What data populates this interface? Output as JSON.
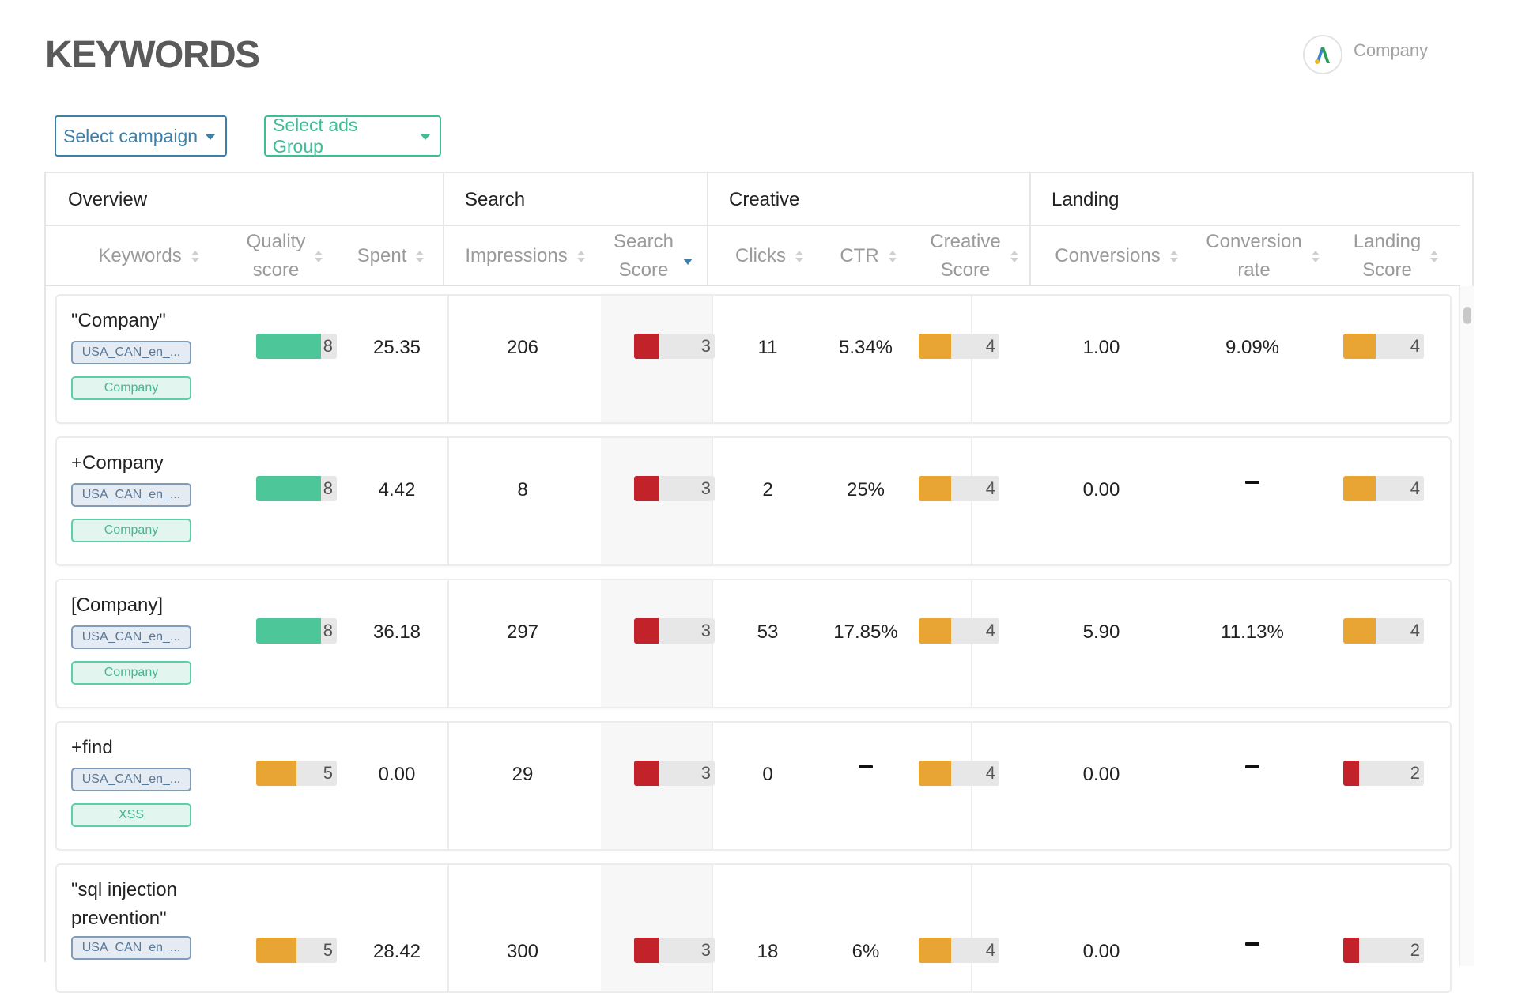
{
  "page": {
    "title": "KEYWORDS"
  },
  "brand": {
    "name": "Company",
    "icon": "google-ads-icon"
  },
  "filters": {
    "campaign_label": "Select campaign",
    "ads_group_label": "Select ads Group"
  },
  "groups": [
    "Overview",
    "Search",
    "Creative",
    "Landing"
  ],
  "columns": {
    "keywords": "Keywords",
    "quality_1": "Quality",
    "quality_2": "score",
    "spent": "Spent",
    "impressions": "Impressions",
    "search_1": "Search",
    "search_2": "Score",
    "clicks": "Clicks",
    "ctr": "CTR",
    "creative_1": "Creative",
    "creative_2": "Score",
    "conversions": "Conversions",
    "conv_rate_1": "Conversion",
    "conv_rate_2": "rate",
    "landing_1": "Landing",
    "landing_2": "Score"
  },
  "score_max": 10,
  "colors": {
    "green": "#4dc69a",
    "orange": "#e9a534",
    "red": "#c2232b",
    "accent": "#3e7fa8",
    "teal": "#3cbf97"
  },
  "rows": [
    {
      "keyword_lines": [
        "\"Company\""
      ],
      "campaign": "USA_CAN_en_...",
      "ad_group": "Company",
      "quality": {
        "value": 8,
        "label": "8",
        "color": "green"
      },
      "spent": "25.35",
      "impressions": "206",
      "search": {
        "value": 3,
        "label": "3",
        "color": "red"
      },
      "clicks": "11",
      "ctr": "5.34%",
      "creative": {
        "value": 4,
        "label": "4",
        "color": "orange"
      },
      "conversions": "1.00",
      "conv_rate": "9.09%",
      "landing": {
        "value": 4,
        "label": "4",
        "color": "orange"
      }
    },
    {
      "keyword_lines": [
        "+Company"
      ],
      "campaign": "USA_CAN_en_...",
      "ad_group": "Company",
      "quality": {
        "value": 8,
        "label": "8",
        "color": "green"
      },
      "spent": "4.42",
      "impressions": "8",
      "search": {
        "value": 3,
        "label": "3",
        "color": "red"
      },
      "clicks": "2",
      "ctr": "25%",
      "creative": {
        "value": 4,
        "label": "4",
        "color": "orange"
      },
      "conversions": "0.00",
      "conv_rate": null,
      "landing": {
        "value": 4,
        "label": "4",
        "color": "orange"
      }
    },
    {
      "keyword_lines": [
        "[Company]"
      ],
      "campaign": "USA_CAN_en_...",
      "ad_group": "Company",
      "quality": {
        "value": 8,
        "label": "8",
        "color": "green"
      },
      "spent": "36.18",
      "impressions": "297",
      "search": {
        "value": 3,
        "label": "3",
        "color": "red"
      },
      "clicks": "53",
      "ctr": "17.85%",
      "creative": {
        "value": 4,
        "label": "4",
        "color": "orange"
      },
      "conversions": "5.90",
      "conv_rate": "11.13%",
      "landing": {
        "value": 4,
        "label": "4",
        "color": "orange"
      }
    },
    {
      "keyword_lines": [
        "+find"
      ],
      "campaign": "USA_CAN_en_...",
      "ad_group": "XSS",
      "quality": {
        "value": 5,
        "label": "5",
        "color": "orange"
      },
      "spent": "0.00",
      "impressions": "29",
      "search": {
        "value": 3,
        "label": "3",
        "color": "red"
      },
      "clicks": "0",
      "ctr": null,
      "creative": {
        "value": 4,
        "label": "4",
        "color": "orange"
      },
      "conversions": "0.00",
      "conv_rate": null,
      "landing": {
        "value": 2,
        "label": "2",
        "color": "red"
      }
    },
    {
      "keyword_lines": [
        "\"sql injection",
        "prevention\""
      ],
      "campaign": "USA_CAN_en_...",
      "ad_group": "",
      "quality": {
        "value": 5,
        "label": "5",
        "color": "orange"
      },
      "spent": "28.42",
      "impressions": "300",
      "search": {
        "value": 3,
        "label": "3",
        "color": "red"
      },
      "clicks": "18",
      "ctr": "6%",
      "creative": {
        "value": 4,
        "label": "4",
        "color": "orange"
      },
      "conversions": "0.00",
      "conv_rate": null,
      "landing": {
        "value": 2,
        "label": "2",
        "color": "red"
      }
    }
  ]
}
